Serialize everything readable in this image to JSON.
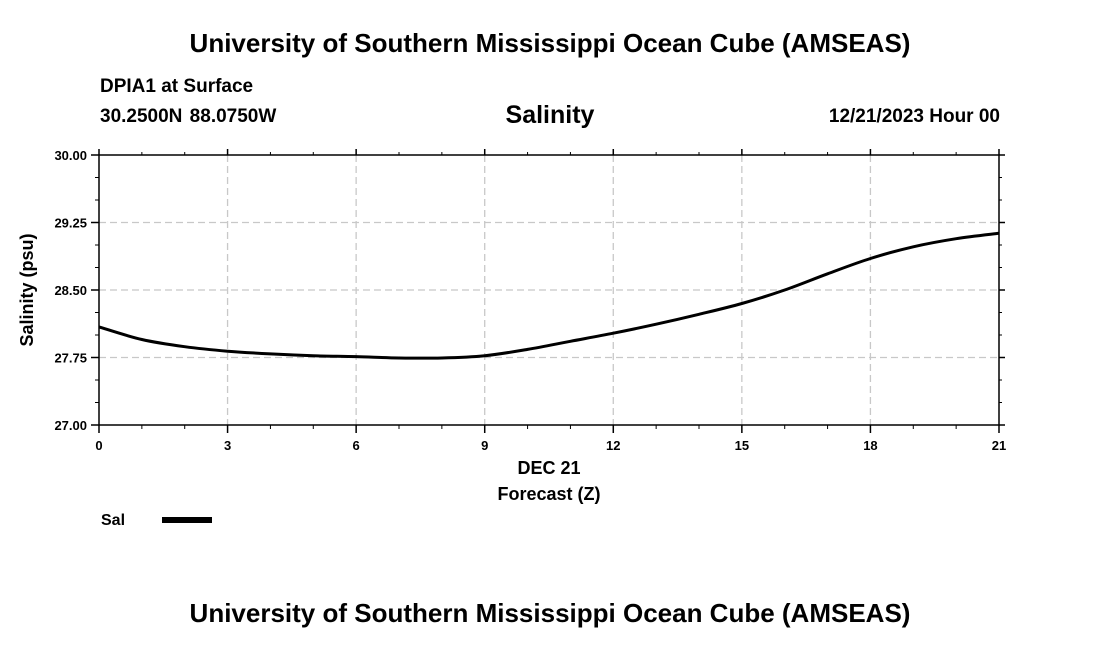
{
  "header": {
    "title": "University of Southern Mississippi Ocean Cube (AMSEAS)",
    "station": "DPIA1 at Surface",
    "coords": "30.2500N  88.0750W",
    "datetime": "12/21/2023 Hour 00"
  },
  "footer": {
    "title": "University of Southern Mississippi Ocean Cube (AMSEAS)"
  },
  "chart_data": {
    "type": "line",
    "title": "Salinity",
    "xlabel": "Forecast (Z)",
    "xsublabel": "DEC 21",
    "ylabel": "Salinity (psu)",
    "xlim": [
      0,
      21
    ],
    "ylim": [
      27.0,
      30.0
    ],
    "x_ticks": [
      "0",
      "3",
      "6",
      "9",
      "12",
      "15",
      "18",
      "21"
    ],
    "x_tick_values": [
      0,
      3,
      6,
      9,
      12,
      15,
      18,
      21
    ],
    "y_ticks": [
      "27.00",
      "27.75",
      "28.50",
      "29.25",
      "30.00"
    ],
    "y_tick_values": [
      27.0,
      27.75,
      28.5,
      29.25,
      30.0
    ],
    "grid": true,
    "series": [
      {
        "name": "Sal",
        "color": "#000000",
        "x": [
          0,
          1,
          2,
          3,
          4,
          5,
          6,
          7,
          8,
          9,
          10,
          11,
          12,
          13,
          14,
          15,
          16,
          17,
          18,
          19,
          20,
          21
        ],
        "values": [
          28.09,
          27.95,
          27.87,
          27.82,
          27.79,
          27.77,
          27.76,
          27.745,
          27.745,
          27.77,
          27.84,
          27.93,
          28.02,
          28.12,
          28.23,
          28.35,
          28.5,
          28.68,
          28.85,
          28.98,
          29.07,
          29.13
        ]
      }
    ]
  }
}
